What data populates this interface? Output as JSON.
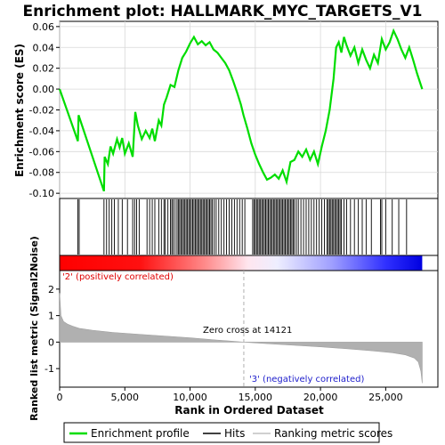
{
  "chart_data": {
    "type": "line",
    "title": "Enrichment plot: HALLMARK_MYC_TARGETS_V1",
    "x_axis": {
      "label": "Rank in Ordered Dataset",
      "range": [
        0,
        29000
      ],
      "ticks": [
        0,
        5000,
        10000,
        15000,
        20000,
        25000
      ],
      "tick_labels": [
        "0",
        "5,000",
        "10,000",
        "15,000",
        "20,000",
        "25,000"
      ]
    },
    "top_panel": {
      "ylabel": "Enrichment score (ES)",
      "ylim": [
        -0.105,
        0.065
      ],
      "ticks": [
        0.06,
        0.04,
        0.02,
        0.0,
        -0.02,
        -0.04,
        -0.06,
        -0.08,
        -0.1
      ],
      "tick_labels": [
        "0.06",
        "0.04",
        "0.02",
        "0.00",
        "-0.02",
        "-0.04",
        "-0.06",
        "-0.08",
        "-0.10"
      ],
      "grid": true,
      "series": [
        {
          "name": "Enrichment profile",
          "color": "#00dd00",
          "x": [
            0,
            1400,
            1450,
            3400,
            3450,
            3700,
            3900,
            4100,
            4400,
            4600,
            4800,
            5000,
            5300,
            5600,
            5800,
            6000,
            6300,
            6600,
            6900,
            7100,
            7300,
            7600,
            7800,
            8000,
            8200,
            8500,
            8800,
            9100,
            9400,
            9700,
            10000,
            10300,
            10600,
            10900,
            11200,
            11500,
            11800,
            12100,
            12400,
            12700,
            13000,
            13300,
            13600,
            13900,
            14100,
            14400,
            14700,
            15000,
            15300,
            15600,
            15900,
            16200,
            16500,
            16800,
            17100,
            17400,
            17700,
            18000,
            18300,
            18600,
            18900,
            19200,
            19500,
            19800,
            20100,
            20400,
            20700,
            21000,
            21200,
            21400,
            21600,
            21800,
            22000,
            22300,
            22600,
            22900,
            23200,
            23500,
            23800,
            24100,
            24400,
            24700,
            25000,
            25300,
            25600,
            25900,
            26200,
            26500,
            26800,
            27100,
            27400,
            27800
          ],
          "y": [
            0.0,
            -0.05,
            -0.025,
            -0.098,
            -0.065,
            -0.072,
            -0.055,
            -0.062,
            -0.048,
            -0.056,
            -0.047,
            -0.062,
            -0.052,
            -0.065,
            -0.022,
            -0.035,
            -0.048,
            -0.04,
            -0.047,
            -0.038,
            -0.05,
            -0.03,
            -0.035,
            -0.015,
            -0.008,
            0.004,
            0.002,
            0.018,
            0.03,
            0.036,
            0.044,
            0.05,
            0.043,
            0.046,
            0.042,
            0.045,
            0.038,
            0.035,
            0.03,
            0.025,
            0.018,
            0.008,
            -0.003,
            -0.015,
            -0.025,
            -0.038,
            -0.052,
            -0.063,
            -0.072,
            -0.08,
            -0.087,
            -0.085,
            -0.082,
            -0.086,
            -0.078,
            -0.089,
            -0.07,
            -0.068,
            -0.06,
            -0.065,
            -0.058,
            -0.068,
            -0.06,
            -0.072,
            -0.055,
            -0.04,
            -0.02,
            0.01,
            0.04,
            0.045,
            0.035,
            0.05,
            0.042,
            0.032,
            0.04,
            0.025,
            0.038,
            0.028,
            0.02,
            0.033,
            0.025,
            0.048,
            0.038,
            0.045,
            0.056,
            0.048,
            0.038,
            0.03,
            0.04,
            0.028,
            0.015,
            0.0
          ]
        }
      ]
    },
    "hits": {
      "name": "Hits",
      "color": "#000000",
      "positions": [
        1400,
        1500,
        3400,
        3600,
        3800,
        4000,
        4200,
        4500,
        4800,
        5200,
        5600,
        5750,
        5900,
        6100,
        6700,
        6900,
        7100,
        7300,
        7600,
        7800,
        8000,
        8100,
        8300,
        8500,
        8600,
        8700,
        8850,
        9000,
        9100,
        9200,
        9300,
        9400,
        9500,
        9600,
        9700,
        9800,
        9900,
        10000,
        10100,
        10200,
        10300,
        10400,
        10500,
        10600,
        10700,
        10800,
        10900,
        11000,
        11100,
        11200,
        11300,
        11400,
        11500,
        11600,
        11700,
        11850,
        12000,
        12200,
        12400,
        12600,
        12800,
        13000,
        13200,
        13400,
        13600,
        13800,
        14000,
        14200,
        14800,
        14900,
        15000,
        15100,
        15200,
        15300,
        15400,
        15500,
        15600,
        15700,
        15800,
        15900,
        16000,
        16100,
        16200,
        16300,
        16400,
        16500,
        16600,
        16700,
        16800,
        16900,
        17000,
        17100,
        17200,
        17300,
        17400,
        17500,
        17600,
        17700,
        17800,
        17900,
        18000,
        18150,
        18300,
        18500,
        18700,
        18900,
        19100,
        19300,
        19500,
        19700,
        19900,
        20100,
        20300,
        20500,
        20600,
        20700,
        20800,
        20900,
        21000,
        21100,
        21200,
        21300,
        21400,
        21500,
        21600,
        21800,
        22000,
        22300,
        22600,
        22900,
        23200,
        23500,
        23900,
        24600,
        24700,
        25000,
        25500,
        26000,
        26600
      ]
    },
    "ranking_bar": {
      "positive_color": "#ff0000",
      "negative_color": "#0000ff",
      "zero_cross_color": "#ffffff"
    },
    "bottom_panel": {
      "ylabel": "Ranked list metric (Signal2Noise)",
      "ylim": [
        -1.7,
        2.7
      ],
      "ticks": [
        2,
        1,
        0,
        -1
      ],
      "tick_labels": [
        "2",
        "1",
        "0",
        "-1"
      ],
      "metric_profile": {
        "name": "Ranking metric scores",
        "color": "#b0b0b0",
        "x": [
          0,
          100,
          300,
          600,
          1000,
          1500,
          2500,
          4000,
          6000,
          8000,
          10000,
          12000,
          14121,
          16000,
          18000,
          20000,
          22000,
          24000,
          25500,
          26500,
          27200,
          27500,
          27700,
          27800
        ],
        "y": [
          1.85,
          1.0,
          0.78,
          0.68,
          0.6,
          0.52,
          0.45,
          0.37,
          0.3,
          0.23,
          0.16,
          0.08,
          0.0,
          -0.06,
          -0.12,
          -0.18,
          -0.25,
          -0.33,
          -0.4,
          -0.48,
          -0.6,
          -0.75,
          -1.1,
          -1.55
        ]
      }
    },
    "annotations": {
      "positive": "'2' (positively correlated)",
      "negative": "'3' (negatively correlated)",
      "zero_cross": "Zero cross at 14121",
      "zero_cross_rank": 14121
    },
    "legend": {
      "placement": "bottom",
      "entries": [
        {
          "label": "Enrichment profile",
          "color": "#00dd00",
          "kind": "line"
        },
        {
          "label": "Hits",
          "color": "#000000",
          "kind": "line"
        },
        {
          "label": "Ranking metric scores",
          "color": "#c0c0c0",
          "kind": "line"
        }
      ]
    }
  }
}
